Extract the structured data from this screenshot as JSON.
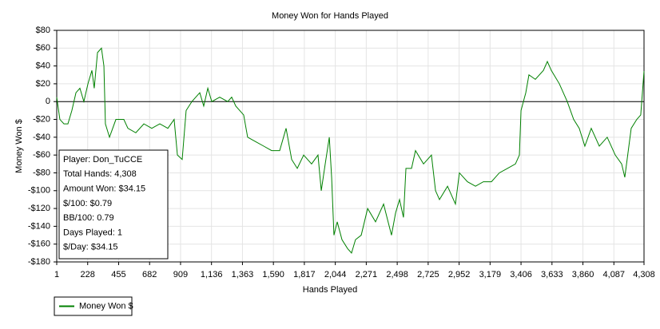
{
  "chart_data": {
    "type": "line",
    "title": "Money Won for Hands Played",
    "x_label": "Hands Played",
    "y_label": "Money Won $",
    "x": [
      1,
      24,
      54,
      83,
      112,
      142,
      171,
      200,
      230,
      259,
      276,
      300,
      329,
      347,
      358,
      388,
      435,
      493,
      523,
      581,
      640,
      698,
      757,
      816,
      862,
      886,
      921,
      950,
      992,
      1050,
      1079,
      1109,
      1138,
      1196,
      1255,
      1284,
      1314,
      1372,
      1401,
      1460,
      1519,
      1577,
      1636,
      1683,
      1724,
      1765,
      1812,
      1870,
      1917,
      1941,
      1970,
      2000,
      2017,
      2034,
      2058,
      2093,
      2134,
      2163,
      2192,
      2234,
      2281,
      2339,
      2398,
      2456,
      2486,
      2515,
      2544,
      2562,
      2603,
      2632,
      2691,
      2749,
      2779,
      2808,
      2867,
      2925,
      2954,
      3013,
      3072,
      3130,
      3189,
      3247,
      3306,
      3365,
      3394,
      3406,
      3441,
      3464,
      3511,
      3570,
      3599,
      3628,
      3687,
      3745,
      3792,
      3833,
      3874,
      3921,
      3980,
      4038,
      4097,
      4144,
      4167,
      4214,
      4255,
      4284,
      4308
    ],
    "series": [
      {
        "name": "Money Won $",
        "color": "#008000",
        "values": [
          5,
          -20,
          -25,
          -25,
          -10,
          10,
          15,
          0,
          20,
          35,
          15,
          55,
          60,
          40,
          -25,
          -40,
          -20,
          -20,
          -30,
          -35,
          -25,
          -30,
          -25,
          -30,
          -20,
          -60,
          -65,
          -10,
          0,
          10,
          -5,
          15,
          0,
          5,
          0,
          5,
          -5,
          -15,
          -40,
          -45,
          -50,
          -55,
          -55,
          -30,
          -65,
          -75,
          -60,
          -70,
          -60,
          -100,
          -70,
          -40,
          -85,
          -150,
          -135,
          -155,
          -165,
          -170,
          -155,
          -150,
          -120,
          -135,
          -115,
          -150,
          -125,
          -110,
          -130,
          -75,
          -75,
          -55,
          -70,
          -60,
          -100,
          -110,
          -95,
          -115,
          -80,
          -90,
          -95,
          -90,
          -90,
          -80,
          -75,
          -70,
          -60,
          -10,
          10,
          30,
          25,
          35,
          45,
          35,
          20,
          0,
          -20,
          -30,
          -50,
          -30,
          -50,
          -40,
          -60,
          -70,
          -85,
          -30,
          -20,
          -15,
          34.15
        ]
      }
    ],
    "xlim": [
      1,
      4308
    ],
    "xticks": [
      1,
      228,
      455,
      682,
      909,
      {
        "value": 1136,
        "label": "1,136"
      },
      {
        "value": 1363,
        "label": "1,363"
      },
      {
        "value": 1590,
        "label": "1,590"
      },
      {
        "value": 1817,
        "label": "1,817"
      },
      {
        "value": 2044,
        "label": "2,044"
      },
      {
        "value": 2271,
        "label": "2,271"
      },
      {
        "value": 2498,
        "label": "2,498"
      },
      {
        "value": 2725,
        "label": "2,725"
      },
      {
        "value": 2952,
        "label": "2,952"
      },
      {
        "value": 3179,
        "label": "3,179"
      },
      {
        "value": 3406,
        "label": "3,406"
      },
      {
        "value": 3633,
        "label": "3,633"
      },
      {
        "value": 3860,
        "label": "3,860"
      },
      {
        "value": 4087,
        "label": "4,087"
      },
      {
        "value": 4308,
        "label": "4,308"
      }
    ],
    "ylim": [
      -180,
      80
    ],
    "yticks": [
      {
        "value": 80,
        "label": "$80"
      },
      {
        "value": 60,
        "label": "$60"
      },
      {
        "value": 40,
        "label": "$40"
      },
      {
        "value": 20,
        "label": "$20"
      },
      0,
      {
        "value": -20,
        "label": "-$20"
      },
      {
        "value": -40,
        "label": "-$40"
      },
      {
        "value": -60,
        "label": "-$60"
      },
      {
        "value": -80,
        "label": "-$80"
      },
      {
        "value": -100,
        "label": "-$100"
      },
      {
        "value": -120,
        "label": "-$120"
      },
      {
        "value": -140,
        "label": "-$140"
      },
      {
        "value": -160,
        "label": "-$160"
      },
      {
        "value": -180,
        "label": "-$180"
      }
    ],
    "grid": true,
    "legend": "bottom-left",
    "info_box": [
      "Player: Don_TuCCE",
      "Total Hands: 4,308",
      "Amount Won: $34.15",
      "$/100: $0.79",
      "BB/100: 0.79",
      "Days Played: 1",
      "$/Day: $34.15"
    ]
  }
}
